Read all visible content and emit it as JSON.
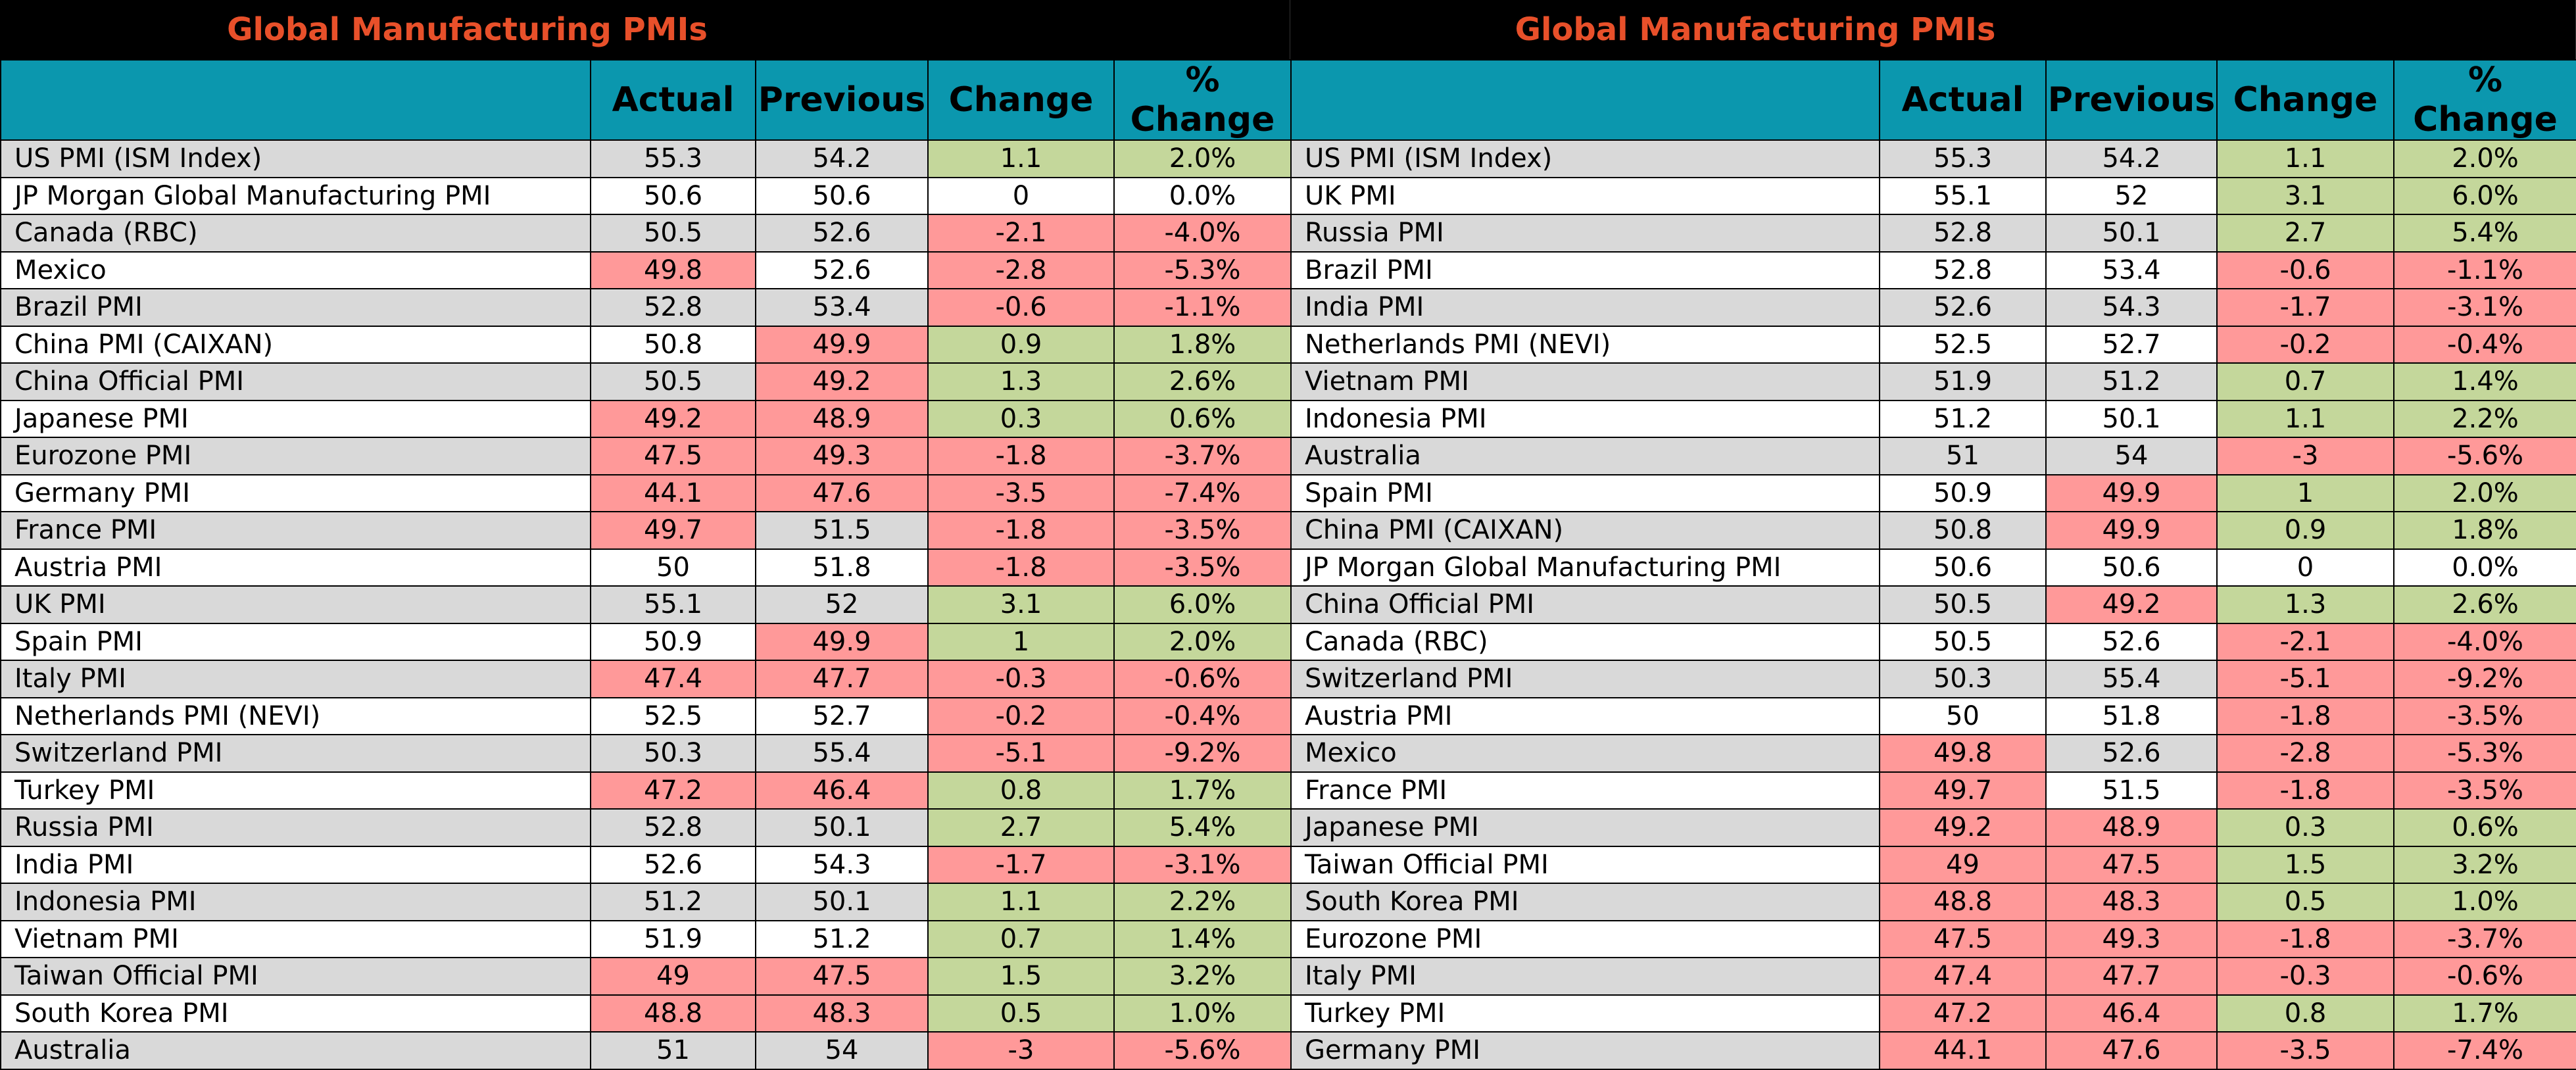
{
  "colors": {
    "title_bg": "#000000",
    "title_text": "#e8502a",
    "header_bg": "#0b97ae",
    "row_alt": "#d9d9d9",
    "row_plain": "#ffffff",
    "positive": "#c4d79b",
    "negative": "#ff9999"
  },
  "chart_data": {
    "type": "table",
    "columns": [
      "",
      "Actual",
      "Previous",
      "Change",
      "% Change"
    ],
    "tables": [
      {
        "title": "Global Manufacturing PMIs",
        "rows": [
          {
            "name": "US PMI (ISM Index)",
            "actual": "55.3",
            "previous": "54.2",
            "change": "1.1",
            "pct": "2.0%"
          },
          {
            "name": "JP Morgan Global Manufacturing PMI",
            "actual": "50.6",
            "previous": "50.6",
            "change": "0",
            "pct": "0.0%"
          },
          {
            "name": "Canada (RBC)",
            "actual": "50.5",
            "previous": "52.6",
            "change": "-2.1",
            "pct": "-4.0%"
          },
          {
            "name": "Mexico",
            "actual": "49.8",
            "previous": "52.6",
            "change": "-2.8",
            "pct": "-5.3%"
          },
          {
            "name": "Brazil PMI",
            "actual": "52.8",
            "previous": "53.4",
            "change": "-0.6",
            "pct": "-1.1%"
          },
          {
            "name": "China PMI (CAIXAN)",
            "actual": "50.8",
            "previous": "49.9",
            "change": "0.9",
            "pct": "1.8%"
          },
          {
            "name": "China Official PMI",
            "actual": "50.5",
            "previous": "49.2",
            "change": "1.3",
            "pct": "2.6%"
          },
          {
            "name": "Japanese PMI",
            "actual": "49.2",
            "previous": "48.9",
            "change": "0.3",
            "pct": "0.6%"
          },
          {
            "name": "Eurozone PMI",
            "actual": "47.5",
            "previous": "49.3",
            "change": "-1.8",
            "pct": "-3.7%"
          },
          {
            "name": "Germany PMI",
            "actual": "44.1",
            "previous": "47.6",
            "change": "-3.5",
            "pct": "-7.4%"
          },
          {
            "name": "France PMI",
            "actual": "49.7",
            "previous": "51.5",
            "change": "-1.8",
            "pct": "-3.5%"
          },
          {
            "name": "Austria PMI",
            "actual": "50",
            "previous": "51.8",
            "change": "-1.8",
            "pct": "-3.5%"
          },
          {
            "name": "UK PMI",
            "actual": "55.1",
            "previous": "52",
            "change": "3.1",
            "pct": "6.0%"
          },
          {
            "name": "Spain PMI",
            "actual": "50.9",
            "previous": "49.9",
            "change": "1",
            "pct": "2.0%"
          },
          {
            "name": "Italy PMI",
            "actual": "47.4",
            "previous": "47.7",
            "change": "-0.3",
            "pct": "-0.6%"
          },
          {
            "name": "Netherlands PMI (NEVI)",
            "actual": "52.5",
            "previous": "52.7",
            "change": "-0.2",
            "pct": "-0.4%"
          },
          {
            "name": "Switzerland PMI",
            "actual": "50.3",
            "previous": "55.4",
            "change": "-5.1",
            "pct": "-9.2%"
          },
          {
            "name": "Turkey PMI",
            "actual": "47.2",
            "previous": "46.4",
            "change": "0.8",
            "pct": "1.7%"
          },
          {
            "name": "Russia PMI",
            "actual": "52.8",
            "previous": "50.1",
            "change": "2.7",
            "pct": "5.4%"
          },
          {
            "name": "India PMI",
            "actual": "52.6",
            "previous": "54.3",
            "change": "-1.7",
            "pct": "-3.1%"
          },
          {
            "name": "Indonesia PMI",
            "actual": "51.2",
            "previous": "50.1",
            "change": "1.1",
            "pct": "2.2%"
          },
          {
            "name": "Vietnam PMI",
            "actual": "51.9",
            "previous": "51.2",
            "change": "0.7",
            "pct": "1.4%"
          },
          {
            "name": "Taiwan Official PMI",
            "actual": "49",
            "previous": "47.5",
            "change": "1.5",
            "pct": "3.2%"
          },
          {
            "name": "South Korea PMI",
            "actual": "48.8",
            "previous": "48.3",
            "change": "0.5",
            "pct": "1.0%"
          },
          {
            "name": "Australia",
            "actual": "51",
            "previous": "54",
            "change": "-3",
            "pct": "-5.6%"
          }
        ]
      },
      {
        "title": "Global Manufacturing PMIs",
        "rows": [
          {
            "name": "US PMI (ISM Index)",
            "actual": "55.3",
            "previous": "54.2",
            "change": "1.1",
            "pct": "2.0%"
          },
          {
            "name": "UK PMI",
            "actual": "55.1",
            "previous": "52",
            "change": "3.1",
            "pct": "6.0%"
          },
          {
            "name": "Russia PMI",
            "actual": "52.8",
            "previous": "50.1",
            "change": "2.7",
            "pct": "5.4%"
          },
          {
            "name": "Brazil PMI",
            "actual": "52.8",
            "previous": "53.4",
            "change": "-0.6",
            "pct": "-1.1%"
          },
          {
            "name": "India PMI",
            "actual": "52.6",
            "previous": "54.3",
            "change": "-1.7",
            "pct": "-3.1%"
          },
          {
            "name": "Netherlands PMI (NEVI)",
            "actual": "52.5",
            "previous": "52.7",
            "change": "-0.2",
            "pct": "-0.4%"
          },
          {
            "name": "Vietnam PMI",
            "actual": "51.9",
            "previous": "51.2",
            "change": "0.7",
            "pct": "1.4%"
          },
          {
            "name": "Indonesia PMI",
            "actual": "51.2",
            "previous": "50.1",
            "change": "1.1",
            "pct": "2.2%"
          },
          {
            "name": "Australia",
            "actual": "51",
            "previous": "54",
            "change": "-3",
            "pct": "-5.6%"
          },
          {
            "name": "Spain PMI",
            "actual": "50.9",
            "previous": "49.9",
            "change": "1",
            "pct": "2.0%"
          },
          {
            "name": "China PMI (CAIXAN)",
            "actual": "50.8",
            "previous": "49.9",
            "change": "0.9",
            "pct": "1.8%"
          },
          {
            "name": "JP Morgan Global Manufacturing PMI",
            "actual": "50.6",
            "previous": "50.6",
            "change": "0",
            "pct": "0.0%"
          },
          {
            "name": "China Official PMI",
            "actual": "50.5",
            "previous": "49.2",
            "change": "1.3",
            "pct": "2.6%"
          },
          {
            "name": "Canada (RBC)",
            "actual": "50.5",
            "previous": "52.6",
            "change": "-2.1",
            "pct": "-4.0%"
          },
          {
            "name": "Switzerland PMI",
            "actual": "50.3",
            "previous": "55.4",
            "change": "-5.1",
            "pct": "-9.2%"
          },
          {
            "name": "Austria PMI",
            "actual": "50",
            "previous": "51.8",
            "change": "-1.8",
            "pct": "-3.5%"
          },
          {
            "name": "Mexico",
            "actual": "49.8",
            "previous": "52.6",
            "change": "-2.8",
            "pct": "-5.3%"
          },
          {
            "name": "France PMI",
            "actual": "49.7",
            "previous": "51.5",
            "change": "-1.8",
            "pct": "-3.5%"
          },
          {
            "name": "Japanese PMI",
            "actual": "49.2",
            "previous": "48.9",
            "change": "0.3",
            "pct": "0.6%"
          },
          {
            "name": "Taiwan Official PMI",
            "actual": "49",
            "previous": "47.5",
            "change": "1.5",
            "pct": "3.2%"
          },
          {
            "name": "South Korea PMI",
            "actual": "48.8",
            "previous": "48.3",
            "change": "0.5",
            "pct": "1.0%"
          },
          {
            "name": "Eurozone PMI",
            "actual": "47.5",
            "previous": "49.3",
            "change": "-1.8",
            "pct": "-3.7%"
          },
          {
            "name": "Italy PMI",
            "actual": "47.4",
            "previous": "47.7",
            "change": "-0.3",
            "pct": "-0.6%"
          },
          {
            "name": "Turkey PMI",
            "actual": "47.2",
            "previous": "46.4",
            "change": "0.8",
            "pct": "1.7%"
          },
          {
            "name": "Germany PMI",
            "actual": "44.1",
            "previous": "47.6",
            "change": "-3.5",
            "pct": "-7.4%"
          }
        ]
      }
    ]
  }
}
